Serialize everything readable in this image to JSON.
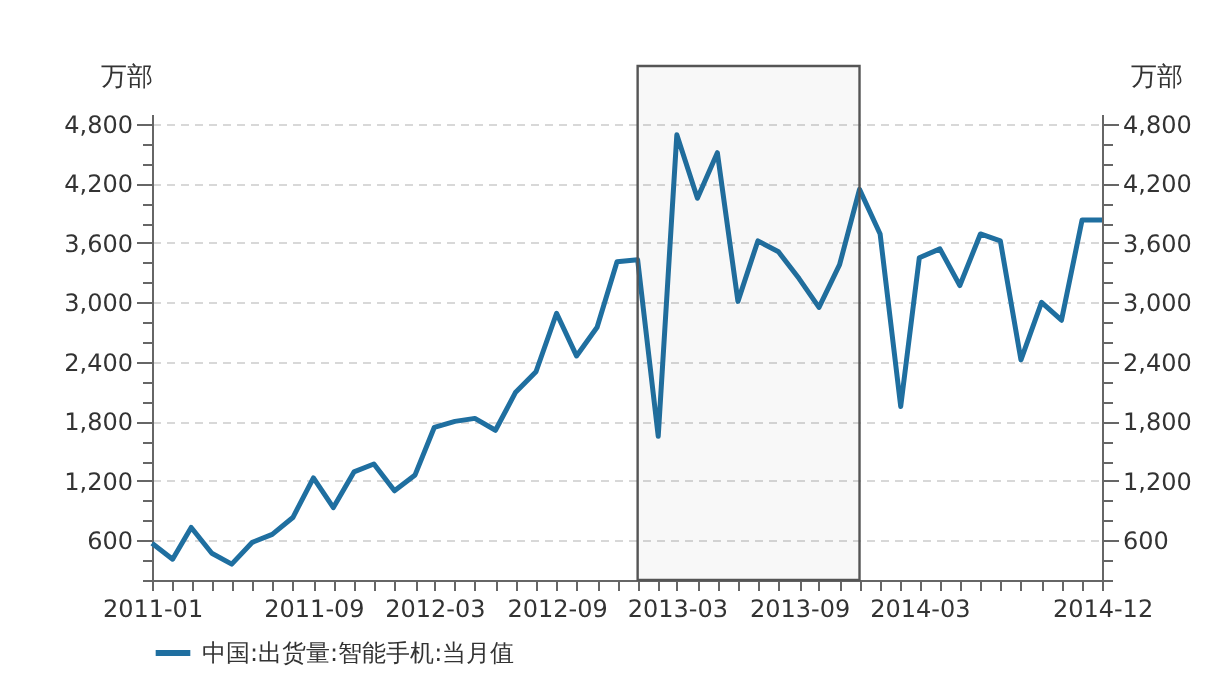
{
  "chart_data": {
    "type": "line",
    "ylabel": "万部",
    "y2label": "万部",
    "x": [
      "2011-01",
      "2011-02",
      "2011-03",
      "2011-04",
      "2011-05",
      "2011-06",
      "2011-07",
      "2011-08",
      "2011-09",
      "2011-10",
      "2011-11",
      "2011-12",
      "2012-01",
      "2012-02",
      "2012-03",
      "2012-04",
      "2012-05",
      "2012-06",
      "2012-07",
      "2012-08",
      "2012-09",
      "2012-10",
      "2012-11",
      "2012-12",
      "2013-01",
      "2013-02",
      "2013-03",
      "2013-04",
      "2013-05",
      "2013-06",
      "2013-07",
      "2013-08",
      "2013-09",
      "2013-10",
      "2013-11",
      "2013-12",
      "2014-01",
      "2014-02",
      "2014-03",
      "2014-04",
      "2014-05",
      "2014-06",
      "2014-07",
      "2014-08",
      "2014-09",
      "2014-10",
      "2014-11",
      "2014-12"
    ],
    "series": [
      {
        "name": "中国:出货量:智能手机:当月值",
        "color": "#1f6fa0",
        "values": [
          570,
          410,
          730,
          470,
          360,
          580,
          660,
          830,
          1230,
          930,
          1290,
          1370,
          1100,
          1260,
          1740,
          1800,
          1830,
          1710,
          2090,
          2300,
          2890,
          2460,
          2750,
          3410,
          3430,
          1650,
          4690,
          4050,
          4510,
          3010,
          3620,
          3510,
          3240,
          2950,
          3380,
          4140,
          3690,
          1950,
          3450,
          3540,
          3170,
          3690,
          3620,
          2420,
          3000,
          2820,
          3830,
          3830
        ]
      }
    ],
    "xlim": [
      "2011-01",
      "2014-12"
    ],
    "xticks": [
      {
        "value": "2011-01",
        "label": "2011-01"
      },
      {
        "value": "2011-02",
        "label": null
      },
      {
        "value": "2011-03",
        "label": null
      },
      {
        "value": "2011-04",
        "label": null
      },
      {
        "value": "2011-05",
        "label": null
      },
      {
        "value": "2011-06",
        "label": null
      },
      {
        "value": "2011-07",
        "label": null
      },
      {
        "value": "2011-08",
        "label": null
      },
      {
        "value": "2011-09",
        "label": "2011-09"
      },
      {
        "value": "2011-10",
        "label": null
      },
      {
        "value": "2011-11",
        "label": null
      },
      {
        "value": "2011-12",
        "label": null
      },
      {
        "value": "2012-01",
        "label": null
      },
      {
        "value": "2012-02",
        "label": null
      },
      {
        "value": "2012-03",
        "label": "2012-03"
      },
      {
        "value": "2012-04",
        "label": null
      },
      {
        "value": "2012-05",
        "label": null
      },
      {
        "value": "2012-06",
        "label": null
      },
      {
        "value": "2012-07",
        "label": null
      },
      {
        "value": "2012-08",
        "label": null
      },
      {
        "value": "2012-09",
        "label": "2012-09"
      },
      {
        "value": "2012-10",
        "label": null
      },
      {
        "value": "2012-11",
        "label": null
      },
      {
        "value": "2012-12",
        "label": null
      },
      {
        "value": "2013-01",
        "label": null
      },
      {
        "value": "2013-02",
        "label": null
      },
      {
        "value": "2013-03",
        "label": "2013-03"
      },
      {
        "value": "2013-04",
        "label": null
      },
      {
        "value": "2013-05",
        "label": null
      },
      {
        "value": "2013-06",
        "label": null
      },
      {
        "value": "2013-07",
        "label": null
      },
      {
        "value": "2013-08",
        "label": null
      },
      {
        "value": "2013-09",
        "label": "2013-09"
      },
      {
        "value": "2013-10",
        "label": null
      },
      {
        "value": "2013-11",
        "label": null
      },
      {
        "value": "2013-12",
        "label": null
      },
      {
        "value": "2014-01",
        "label": null
      },
      {
        "value": "2014-02",
        "label": null
      },
      {
        "value": "2014-03",
        "label": "2014-03"
      },
      {
        "value": "2014-04",
        "label": null
      },
      {
        "value": "2014-05",
        "label": null
      },
      {
        "value": "2014-06",
        "label": null
      },
      {
        "value": "2014-07",
        "label": null
      },
      {
        "value": "2014-08",
        "label": null
      },
      {
        "value": "2014-09",
        "label": null
      },
      {
        "value": "2014-10",
        "label": null
      },
      {
        "value": "2014-11",
        "label": null
      },
      {
        "value": "2014-12",
        "label": "2014-12"
      }
    ],
    "ylim": [
      200,
      4900
    ],
    "yticks": [
      {
        "value": 200,
        "label": null
      },
      {
        "value": 400,
        "label": null
      },
      {
        "value": 600,
        "label": "600"
      },
      {
        "value": 800,
        "label": null
      },
      {
        "value": 1000,
        "label": null
      },
      {
        "value": 1200,
        "label": "1,200"
      },
      {
        "value": 1400,
        "label": null
      },
      {
        "value": 1600,
        "label": null
      },
      {
        "value": 1800,
        "label": "1,800"
      },
      {
        "value": 2000,
        "label": null
      },
      {
        "value": 2200,
        "label": null
      },
      {
        "value": 2400,
        "label": "2,400"
      },
      {
        "value": 2600,
        "label": null
      },
      {
        "value": 2800,
        "label": null
      },
      {
        "value": 3000,
        "label": "3,000"
      },
      {
        "value": 3200,
        "label": null
      },
      {
        "value": 3400,
        "label": null
      },
      {
        "value": 3600,
        "label": "3,600"
      },
      {
        "value": 3800,
        "label": null
      },
      {
        "value": 4000,
        "label": null
      },
      {
        "value": 4200,
        "label": "4,200"
      },
      {
        "value": 4400,
        "label": null
      },
      {
        "value": 4600,
        "label": null
      },
      {
        "value": 4800,
        "label": "4,800"
      }
    ],
    "y2lim": [
      200,
      4900
    ],
    "y2ticks": [
      {
        "value": 200,
        "label": null
      },
      {
        "value": 400,
        "label": null
      },
      {
        "value": 600,
        "label": "600"
      },
      {
        "value": 800,
        "label": null
      },
      {
        "value": 1000,
        "label": null
      },
      {
        "value": 1200,
        "label": "1,200"
      },
      {
        "value": 1400,
        "label": null
      },
      {
        "value": 1600,
        "label": null
      },
      {
        "value": 1800,
        "label": "1,800"
      },
      {
        "value": 2000,
        "label": null
      },
      {
        "value": 2200,
        "label": null
      },
      {
        "value": 2400,
        "label": "2,400"
      },
      {
        "value": 2600,
        "label": null
      },
      {
        "value": 2800,
        "label": null
      },
      {
        "value": 3000,
        "label": "3,000"
      },
      {
        "value": 3200,
        "label": null
      },
      {
        "value": 3400,
        "label": null
      },
      {
        "value": 3600,
        "label": "3,600"
      },
      {
        "value": 3800,
        "label": null
      },
      {
        "value": 4000,
        "label": null
      },
      {
        "value": 4200,
        "label": "4,200"
      },
      {
        "value": 4400,
        "label": null
      },
      {
        "value": 4600,
        "label": null
      },
      {
        "value": 4800,
        "label": "4,800"
      }
    ],
    "bands": [
      {
        "axis": "x",
        "from": "2013-01",
        "to": "2013-12",
        "color": "#555555"
      }
    ],
    "grid": "y",
    "legend": "bottom",
    "marker": "none",
    "line_style": "solid"
  }
}
